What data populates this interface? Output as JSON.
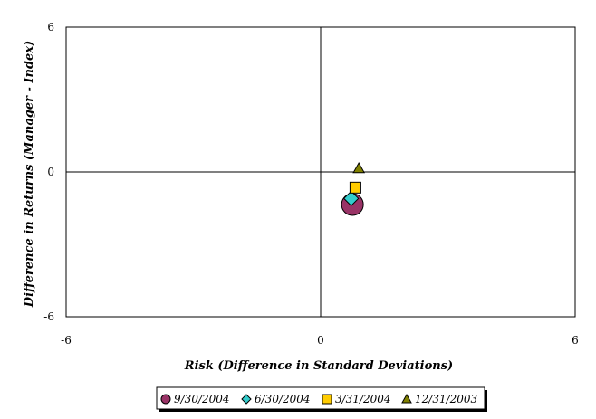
{
  "chart_data": {
    "type": "scatter",
    "title": "",
    "xlabel": "Risk (Difference in Standard Deviations)",
    "ylabel": "Difference in Returns (Manager - Index)",
    "xlim": [
      -6,
      6
    ],
    "ylim": [
      -6,
      6
    ],
    "xticks": [
      "-6",
      "0",
      "6"
    ],
    "yticks": [
      "6",
      "0",
      "-6"
    ],
    "grid": false,
    "legend_position": "bottom",
    "series": [
      {
        "name": "9/30/2004",
        "marker": "circle",
        "color": "#993366",
        "x": [
          0.75
        ],
        "y": [
          -1.35
        ]
      },
      {
        "name": "6/30/2004",
        "marker": "diamond",
        "color": "#33CCCC",
        "x": [
          0.72
        ],
        "y": [
          -1.1
        ]
      },
      {
        "name": "3/31/2004",
        "marker": "square",
        "color": "#FFCC00",
        "x": [
          0.82
        ],
        "y": [
          -0.65
        ]
      },
      {
        "name": "12/31/2003",
        "marker": "triangle",
        "color": "#808000",
        "x": [
          0.9
        ],
        "y": [
          0.15
        ]
      }
    ]
  }
}
